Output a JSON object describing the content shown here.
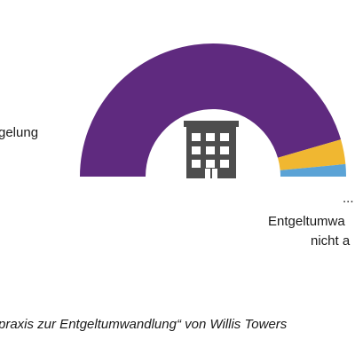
{
  "colors": {
    "purple": "#5f2a7f",
    "yellow": "#f0b731",
    "blue": "#5ba3d6",
    "icon": "#4d4d4d"
  },
  "icon": "office-building-icon",
  "chart_data": {
    "type": "donut-half",
    "slices": [
      {
        "label": "…gelung",
        "value": 91,
        "color": "#5f2a7f"
      },
      {
        "label": "",
        "value": 6,
        "color": "#f0b731"
      },
      {
        "label": "… Entgeltumwa… nicht a…",
        "value": 3,
        "color": "#5ba3d6"
      }
    ],
    "labels": {
      "left": "gelung",
      "right_dots": "...",
      "right_line1": "Entgeltumwa",
      "right_line2": "nicht a"
    }
  },
  "source": "praxis zur Entgeltumwandlung“ von Willis Towers"
}
